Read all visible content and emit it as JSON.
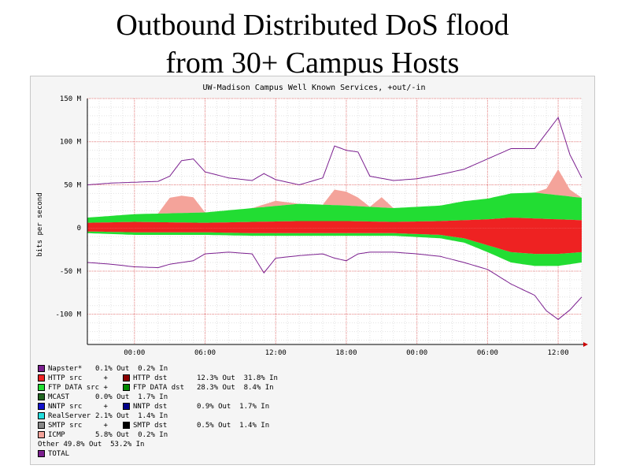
{
  "slide": {
    "title_line1": "Outbound Distributed DoS flood",
    "title_line2": "from 30+ Campus Hosts"
  },
  "chart_data": {
    "type": "area",
    "title": "UW-Madison Campus Well Known Services, +out/-in",
    "ylabel": "bits per second",
    "y_ticks": [
      {
        "value": 150,
        "label": "150 M"
      },
      {
        "value": 100,
        "label": "100 M"
      },
      {
        "value": 50,
        "label": "50 M"
      },
      {
        "value": 0,
        "label": "0"
      },
      {
        "value": -50,
        "label": "-50 M"
      },
      {
        "value": -100,
        "label": "-100 M"
      }
    ],
    "ylim": [
      -135,
      150
    ],
    "x_ticks": [
      "00:00",
      "06:00",
      "12:00",
      "18:00",
      "00:00",
      "06:00",
      "12:00"
    ],
    "x_range_hours": [
      -4,
      38
    ],
    "x_tick_hours": [
      0,
      6,
      12,
      18,
      24,
      30,
      36
    ],
    "grid": true,
    "colors": {
      "napster": "#7b1f8f",
      "http_src": "#ee2222",
      "http_dst": "#8b0000",
      "ftp_data_src": "#22dd33",
      "ftp_data_dst": "#008800",
      "nntp_src": "#1111cc",
      "realserver": "#22dddd",
      "smtp_src": "#888888",
      "smtp_dst": "#000000",
      "icmp": "#f4a39a",
      "total": "#7b1f8f"
    },
    "series": [
      {
        "name": "HTTP src",
        "hours": [
          -4,
          0,
          6,
          10,
          14,
          18,
          22,
          26,
          28,
          30,
          32,
          34,
          36,
          38
        ],
        "out": [
          6,
          7,
          6,
          7,
          8,
          8,
          7,
          8,
          9,
          10,
          12,
          11,
          10,
          9
        ],
        "in": [
          -4,
          -5,
          -5,
          -6,
          -6,
          -6,
          -6,
          -8,
          -12,
          -20,
          -28,
          -30,
          -30,
          -28
        ]
      },
      {
        "name": "FTP DATA src",
        "hours": [
          -4,
          0,
          6,
          10,
          14,
          18,
          22,
          26,
          28,
          30,
          32,
          34,
          36,
          38
        ],
        "out": [
          6,
          9,
          12,
          16,
          20,
          18,
          16,
          18,
          22,
          24,
          28,
          30,
          28,
          26
        ],
        "in": [
          -2,
          -3,
          -3,
          -3,
          -3,
          -3,
          -3,
          -4,
          -5,
          -8,
          -12,
          -14,
          -14,
          -12
        ]
      },
      {
        "name": "ICMP",
        "hours": [
          -4,
          2,
          3,
          4,
          5,
          6,
          8,
          10,
          12,
          14,
          16,
          17,
          18,
          19,
          20,
          21,
          22,
          24,
          30,
          34,
          35,
          36,
          37,
          38
        ],
        "out": [
          0,
          0,
          18,
          20,
          18,
          0,
          0,
          0,
          6,
          0,
          0,
          18,
          16,
          10,
          0,
          12,
          0,
          0,
          0,
          0,
          6,
          30,
          8,
          0
        ],
        "in": [
          0,
          0,
          0,
          0,
          0,
          0,
          0,
          0,
          0,
          0,
          0,
          0,
          0,
          0,
          0,
          0,
          0,
          0,
          0,
          0,
          0,
          0,
          0,
          0
        ]
      },
      {
        "name": "TOTAL",
        "hours": [
          -4,
          -2,
          0,
          2,
          3,
          4,
          5,
          6,
          8,
          10,
          11,
          12,
          14,
          16,
          17,
          18,
          19,
          20,
          22,
          24,
          26,
          28,
          30,
          32,
          34,
          35,
          36,
          37,
          38
        ],
        "out": [
          50,
          52,
          53,
          54,
          60,
          78,
          80,
          65,
          58,
          55,
          63,
          56,
          50,
          58,
          95,
          90,
          88,
          60,
          55,
          57,
          62,
          68,
          80,
          92,
          92,
          110,
          128,
          85,
          58
        ],
        "in": [
          -40,
          -42,
          -45,
          -46,
          -42,
          -40,
          -38,
          -30,
          -28,
          -30,
          -52,
          -35,
          -32,
          -30,
          -35,
          -38,
          -30,
          -28,
          -28,
          -30,
          -33,
          -40,
          -48,
          -65,
          -78,
          -96,
          -106,
          -95,
          -80
        ]
      }
    ]
  },
  "legend": [
    {
      "key": "napster",
      "label": "Napster*",
      "stats": "0.1% Out  0.2% In",
      "color": "#7b1f8f"
    },
    {
      "key": "http",
      "label": "HTTP src     +",
      "color": "#ee2222",
      "label2": "HTTP dst",
      "color2": "#8b0000",
      "stats": "12.3% Out  31.8% In"
    },
    {
      "key": "ftp",
      "label": "FTP DATA src +",
      "color": "#22dd33",
      "label2": "FTP DATA dst",
      "color2": "#008800",
      "stats": "28.3% Out  8.4% In"
    },
    {
      "key": "mcast",
      "label": "MCAST",
      "stats": "0.0% Out  1.7% In",
      "color": "#226622"
    },
    {
      "key": "nntp",
      "label": "NNTP src     +",
      "color": "#1111cc",
      "label2": "NNTP dst",
      "color2": "#000088",
      "stats": "0.9% Out  1.7% In"
    },
    {
      "key": "realserver",
      "label": "RealServer",
      "stats": "2.1% Out  1.4% In",
      "color": "#22dddd"
    },
    {
      "key": "smtp",
      "label": "SMTP src     +",
      "color": "#888888",
      "label2": "SMTP dst",
      "color2": "#000000",
      "stats": "0.5% Out  1.4% In"
    },
    {
      "key": "icmp",
      "label": "ICMP",
      "stats": "5.8% Out  0.2% In",
      "color": "#f4a39a"
    },
    {
      "key": "other",
      "label": "Other 49.8% Out  53.2% In",
      "color": ""
    },
    {
      "key": "total",
      "label": "TOTAL",
      "color": "#7b1f8f"
    }
  ]
}
